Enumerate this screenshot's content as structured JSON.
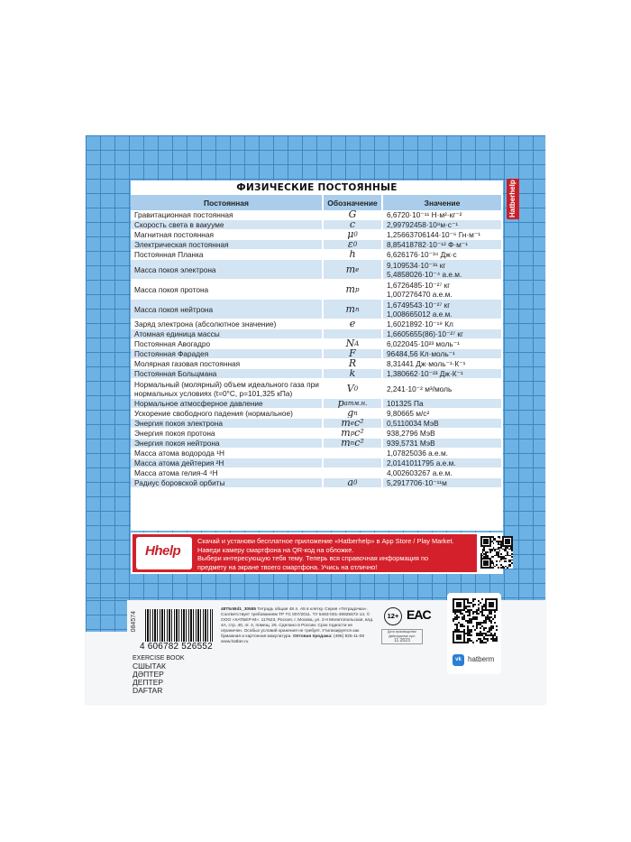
{
  "table": {
    "title": "ФИЗИЧЕСКИЕ ПОСТОЯННЫЕ",
    "headers": [
      "Постоянная",
      "Обозначение",
      "Значение"
    ],
    "rows": [
      {
        "name": "Гравитационная постоянная",
        "sym": "G",
        "sub": "",
        "values": [
          "6,6720·10⁻¹¹ Н·м²·кг⁻²"
        ]
      },
      {
        "name": "Скорость света в вакууме",
        "sym": "c",
        "sub": "",
        "values": [
          "2,99792458·10⁸м·с⁻¹"
        ]
      },
      {
        "name": "Магнитная постоянная",
        "sym": "μ",
        "sub": "0",
        "values": [
          "1,25663706144·10⁻⁶ Гн·м⁻¹"
        ]
      },
      {
        "name": "Электрическая постоянная",
        "sym": "ε",
        "sub": "0",
        "values": [
          "8,85418782·10⁻¹² Ф·м⁻¹"
        ]
      },
      {
        "name": "Постоянная Планка",
        "sym": "h",
        "sub": "",
        "values": [
          "6,626176·10⁻³⁴ Дж·с"
        ]
      },
      {
        "name": "Масса покоя электрона",
        "sym": "m",
        "sub": "e",
        "values": [
          "9,109534·10⁻³¹ кг",
          "5,4858026·10⁻⁴ а.е.м."
        ]
      },
      {
        "name": "Масса покоя протона",
        "sym": "m",
        "sub": "p",
        "values": [
          "1,6726485·10⁻²⁷ кг",
          "1,007276470 а.е.м."
        ]
      },
      {
        "name": "Масса покоя нейтрона",
        "sym": "m",
        "sub": "n",
        "values": [
          "1,6749543·10⁻²⁷ кг",
          "1,008665012 а.е.м."
        ]
      },
      {
        "name": "Заряд электрона (абсолютное значение)",
        "sym": "e",
        "sub": "",
        "values": [
          "1,6021892·10⁻¹⁹ Кл"
        ]
      },
      {
        "name": "Атомная единица массы",
        "sym": "",
        "sub": "",
        "values": [
          "1,6605655(86)·10⁻²⁷ кг"
        ]
      },
      {
        "name": "Постоянная Авогадро",
        "sym": "N",
        "sub": "A",
        "values": [
          "6,022045·10²³ моль⁻¹"
        ]
      },
      {
        "name": "Постоянная Фарадея",
        "sym": "F",
        "sub": "",
        "values": [
          "96484,56 Кл·моль⁻¹"
        ]
      },
      {
        "name": "Молярная газовая постоянная",
        "sym": "R",
        "sub": "",
        "values": [
          "8,31441 Дж·моль⁻¹·К⁻¹"
        ]
      },
      {
        "name": "Постоянная Больцмана",
        "sym": "k",
        "sub": "",
        "values": [
          "1,380662·10⁻²³ Дж·К⁻¹"
        ]
      },
      {
        "name": "Нормальный (молярный) объем идеального газа при нормальных условиях (t=0°C, p=101,325 кПа)",
        "sym": "V",
        "sub": "0",
        "values": [
          "2,241·10⁻² м³/моль"
        ]
      },
      {
        "name": "Нормальное атмосферное давление",
        "sym": "p",
        "sub": "атм.н.",
        "values": [
          "101325 Па"
        ]
      },
      {
        "name": "Ускорение свободного падения (нормальное)",
        "sym": "g",
        "sub": "n",
        "values": [
          "9,80665 м/с²"
        ]
      },
      {
        "name": "Энергия покоя электрона",
        "sym": "m",
        "sub": "e",
        "sym2": "c²",
        "values": [
          "0,5110034 МэВ"
        ]
      },
      {
        "name": "Энергия покоя протона",
        "sym": "m",
        "sub": "p",
        "sym2": "c²",
        "values": [
          "938,2796 МэВ"
        ]
      },
      {
        "name": "Энергия покоя нейтрона",
        "sym": "m",
        "sub": "n",
        "sym2": "c²",
        "values": [
          "939,5731 МэВ"
        ]
      },
      {
        "name": "Масса атома водорода ¹H",
        "sym": "",
        "sub": "",
        "values": [
          "1,07825036 а.е.м."
        ]
      },
      {
        "name": "Масса атома дейтерия ²H",
        "sym": "",
        "sub": "",
        "values": [
          "2,0141011795 а.е.м."
        ]
      },
      {
        "name": "Масса атома гелия-4 ⁴H",
        "sym": "",
        "sub": "",
        "values": [
          "4,002603267 а.е.м."
        ]
      },
      {
        "name": "Радиус боровской орбиты",
        "sym": "a",
        "sub": "0",
        "values": [
          "5,2917706·10⁻¹¹м"
        ]
      }
    ]
  },
  "side_tab": "Hatberhelp",
  "banner": {
    "logo": "Hhelp",
    "lines": [
      "Скачай и установи бесплатное приложение «Hatberhelp» в App Store / Play Market.",
      "Наведи камеру смартфона на QR-код на обложке.",
      "Выбери интересующую тебя тему. Теперь вся справочная информация по",
      "предмету на экране твоего смартфона. Учись на отлично!"
    ]
  },
  "info": {
    "side_code": "084574",
    "barcode_number": "4 606782 526552",
    "languages": [
      "EXERCISE BOOK",
      "СШЫТАК",
      "ДӘПТЕР",
      "ДЕПТЕР",
      "DAFTAR"
    ],
    "article": "48Т5лВd1_30585",
    "description": "Тетрадь общая 48 л. А5 в клетку. Серия «Тетрадочка». Соответствует требованиям ТР ТС 007/2011. ТУ 5463-001-49925672-14. © ООО «ХАТБЕР-М». 117623, Россия, г. Москва, ул. 2-я Мелитопольская, влд. 4А, стр. 40, эт. 4, помещ. 26. Сделано в России. Срок годности не ограничен. Особых условий хранения не требует. Утилизируется как бумажная и картонная макулатура.",
    "wholesale_label": "Оптовая продажа:",
    "wholesale_contact": "(495) 925-11-08 www.hatber.ru",
    "age": "12+",
    "eac": "EAC",
    "date_label": "Дата производства/ Дайындалған күні:",
    "date": "11.2023",
    "vk_name": "hatberm"
  },
  "colors": {
    "grid_blue": "#6db2e4",
    "row_blue": "#d3e4f3",
    "header_blue": "#a9cdeb",
    "brand_red": "#d4202a",
    "vk_blue": "#2a7fd4"
  }
}
